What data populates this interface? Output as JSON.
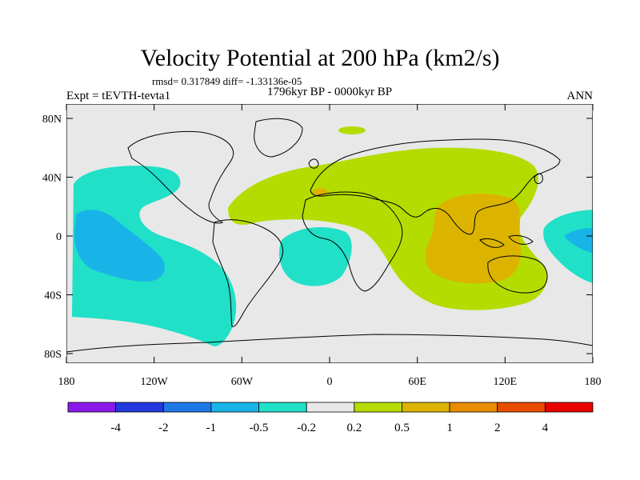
{
  "title": "Velocity Potential at 200 hPa (km2/s)",
  "stats": "rmsd= 0.317849 diff= -1.33136e-05",
  "left_label": "Expt = tEVTH-tevta1",
  "center_label": "1796kyr BP - 0000kyr BP",
  "right_label": "ANN",
  "map": {
    "lat_ticks": [
      "80N",
      "40N",
      "0",
      "40S",
      "80S"
    ],
    "lon_ticks": [
      "180",
      "120W",
      "60W",
      "0",
      "60E",
      "120E",
      "180"
    ],
    "land_color": "#e8e8e8",
    "coast_color": "#000000"
  },
  "colorbar": {
    "labels": [
      "-4",
      "-2",
      "-1",
      "-0.5",
      "-0.2",
      "0.2",
      "0.5",
      "1",
      "2",
      "4"
    ],
    "colors": [
      "#8a1ae8",
      "#2438e0",
      "#1e78e8",
      "#18b4e8",
      "#20e0c8",
      "#e8e8e8",
      "#b4dc00",
      "#dcb400",
      "#e88c00",
      "#e84c00",
      "#e80000"
    ]
  }
}
